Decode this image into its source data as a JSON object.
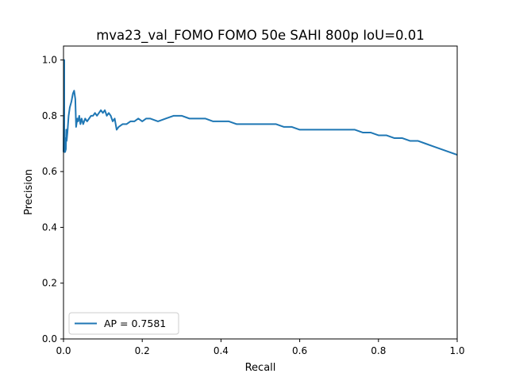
{
  "chart_data": {
    "type": "line",
    "title": "mva23_val_FOMO FOMO 50e SAHI 800p IoU=0.01",
    "xlabel": "Recall",
    "ylabel": "Precision",
    "xlim": [
      0.0,
      1.0
    ],
    "ylim": [
      0.0,
      1.05
    ],
    "xticks": [
      "0.0",
      "0.2",
      "0.4",
      "0.6",
      "0.8",
      "1.0"
    ],
    "yticks": [
      "0.0",
      "0.2",
      "0.4",
      "0.6",
      "0.8",
      "1.0"
    ],
    "grid": false,
    "legend_position": "lower-left",
    "series": [
      {
        "name": "AP = 0.7581",
        "color": "#1f77b4",
        "x": [
          0.0,
          0.002,
          0.002,
          0.004,
          0.004,
          0.006,
          0.007,
          0.008,
          0.01,
          0.013,
          0.016,
          0.02,
          0.024,
          0.027,
          0.03,
          0.032,
          0.035,
          0.037,
          0.04,
          0.043,
          0.046,
          0.05,
          0.055,
          0.06,
          0.065,
          0.07,
          0.075,
          0.08,
          0.085,
          0.09,
          0.095,
          0.1,
          0.105,
          0.11,
          0.115,
          0.12,
          0.125,
          0.13,
          0.135,
          0.14,
          0.15,
          0.16,
          0.17,
          0.18,
          0.19,
          0.2,
          0.21,
          0.22,
          0.24,
          0.26,
          0.28,
          0.3,
          0.32,
          0.34,
          0.36,
          0.38,
          0.4,
          0.42,
          0.44,
          0.46,
          0.48,
          0.5,
          0.52,
          0.54,
          0.56,
          0.58,
          0.6,
          0.62,
          0.64,
          0.66,
          0.68,
          0.7,
          0.72,
          0.74,
          0.76,
          0.78,
          0.8,
          0.82,
          0.84,
          0.86,
          0.88,
          0.9,
          0.92,
          0.94,
          0.96,
          0.98,
          1.0
        ],
        "y": [
          0.67,
          1.0,
          0.67,
          0.72,
          0.67,
          0.68,
          0.75,
          0.71,
          0.74,
          0.8,
          0.83,
          0.85,
          0.88,
          0.89,
          0.86,
          0.76,
          0.79,
          0.78,
          0.8,
          0.77,
          0.79,
          0.77,
          0.79,
          0.78,
          0.79,
          0.8,
          0.8,
          0.81,
          0.8,
          0.81,
          0.82,
          0.81,
          0.82,
          0.8,
          0.81,
          0.8,
          0.78,
          0.79,
          0.75,
          0.76,
          0.77,
          0.77,
          0.78,
          0.78,
          0.79,
          0.78,
          0.79,
          0.79,
          0.78,
          0.79,
          0.8,
          0.8,
          0.79,
          0.79,
          0.79,
          0.78,
          0.78,
          0.78,
          0.77,
          0.77,
          0.77,
          0.77,
          0.77,
          0.77,
          0.76,
          0.76,
          0.75,
          0.75,
          0.75,
          0.75,
          0.75,
          0.75,
          0.75,
          0.75,
          0.74,
          0.74,
          0.73,
          0.73,
          0.72,
          0.72,
          0.71,
          0.71,
          0.7,
          0.69,
          0.68,
          0.67,
          0.66
        ]
      }
    ]
  }
}
